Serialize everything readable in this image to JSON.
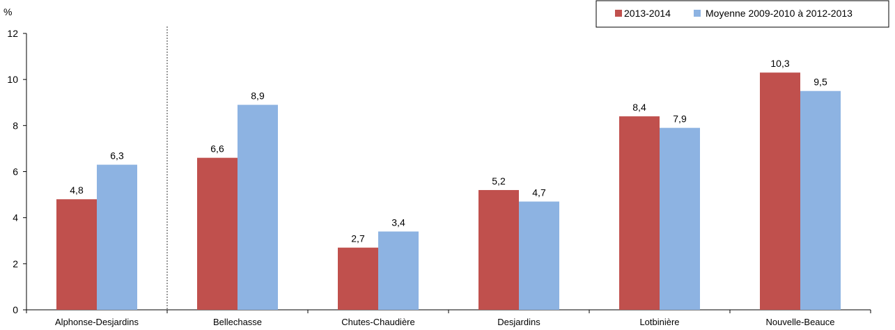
{
  "chart_data": {
    "type": "bar",
    "y_unit": "%",
    "ylim": [
      0,
      12
    ],
    "yticks": [
      0,
      2,
      4,
      6,
      8,
      10,
      12
    ],
    "grid": false,
    "legend_position": "top-right",
    "categories": [
      "Alphonse-Desjardins",
      "Bellechasse",
      "Chutes-Chaudière",
      "Desjardins",
      "Lotbinière",
      "Nouvelle-Beauce"
    ],
    "separator_after_category": "Alphonse-Desjardins",
    "series": [
      {
        "name": "2013-2014",
        "color": "#c0504d",
        "values": [
          4.8,
          6.6,
          2.7,
          5.2,
          8.4,
          10.3
        ],
        "labels": [
          "4,8",
          "6,6",
          "2,7",
          "5,2",
          "8,4",
          "10,3"
        ]
      },
      {
        "name": "Moyenne 2009-2010 à 2012-2013",
        "color": "#8db3e2",
        "values": [
          6.3,
          8.9,
          3.4,
          4.7,
          7.9,
          9.5
        ],
        "labels": [
          "6,3",
          "8,9",
          "3,4",
          "4,7",
          "7,9",
          "9,5"
        ]
      }
    ]
  }
}
